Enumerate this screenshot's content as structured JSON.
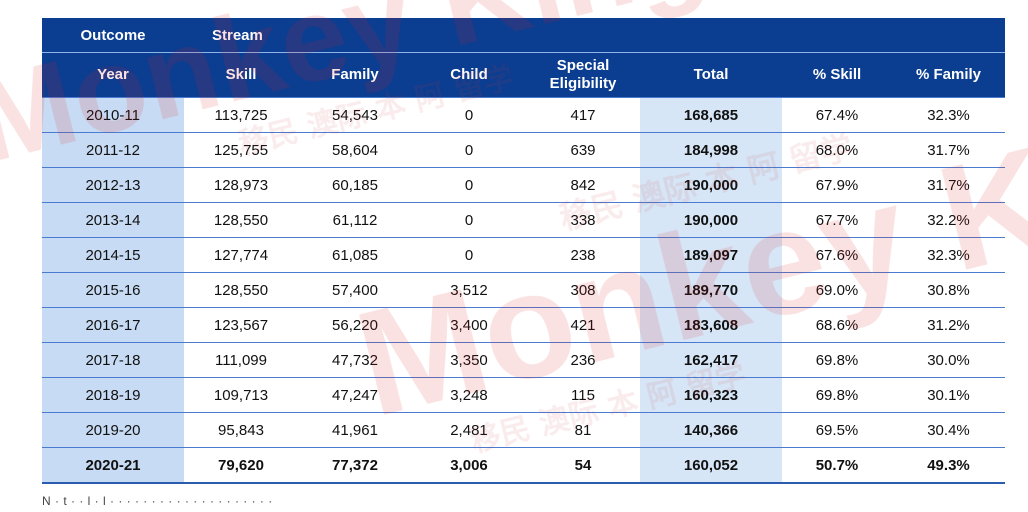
{
  "table": {
    "header_row1": [
      "Outcome",
      "Stream"
    ],
    "header_row2": [
      "Year",
      "Skill",
      "Family",
      "Child",
      "Special\nEligibility",
      "Total",
      "% Skill",
      "% Family"
    ],
    "rows": [
      [
        "2010-11",
        "113,725",
        "54,543",
        "0",
        "417",
        "168,685",
        "67.4%",
        "32.3%"
      ],
      [
        "2011-12",
        "125,755",
        "58,604",
        "0",
        "639",
        "184,998",
        "68.0%",
        "31.7%"
      ],
      [
        "2012-13",
        "128,973",
        "60,185",
        "0",
        "842",
        "190,000",
        "67.9%",
        "31.7%"
      ],
      [
        "2013-14",
        "128,550",
        "61,112",
        "0",
        "338",
        "190,000",
        "67.7%",
        "32.2%"
      ],
      [
        "2014-15",
        "127,774",
        "61,085",
        "0",
        "238",
        "189,097",
        "67.6%",
        "32.3%"
      ],
      [
        "2015-16",
        "128,550",
        "57,400",
        "3,512",
        "308",
        "189,770",
        "69.0%",
        "30.8%"
      ],
      [
        "2016-17",
        "123,567",
        "56,220",
        "3,400",
        "421",
        "183,608",
        "68.6%",
        "31.2%"
      ],
      [
        "2017-18",
        "111,099",
        "47,732",
        "3,350",
        "236",
        "162,417",
        "69.8%",
        "30.0%"
      ],
      [
        "2018-19",
        "109,713",
        "47,247",
        "3,248",
        "115",
        "160,323",
        "69.8%",
        "30.1%"
      ],
      [
        "2019-20",
        "95,843",
        "41,961",
        "2,481",
        "81",
        "140,366",
        "69.5%",
        "30.4%"
      ],
      [
        "2020-21",
        "79,620",
        "77,372",
        "3,006",
        "54",
        "160,052",
        "50.7%",
        "49.3%"
      ]
    ]
  },
  "watermark": {
    "text_latin": "Monkey King",
    "text_cjk": "移民 澳际 本 阿 留学"
  },
  "colors": {
    "header_bg": "#0b3d91",
    "year_col_bg": "#c7dcf4",
    "total_col_bg": "#d6e6f7",
    "watermark_red": "#e02020"
  }
}
